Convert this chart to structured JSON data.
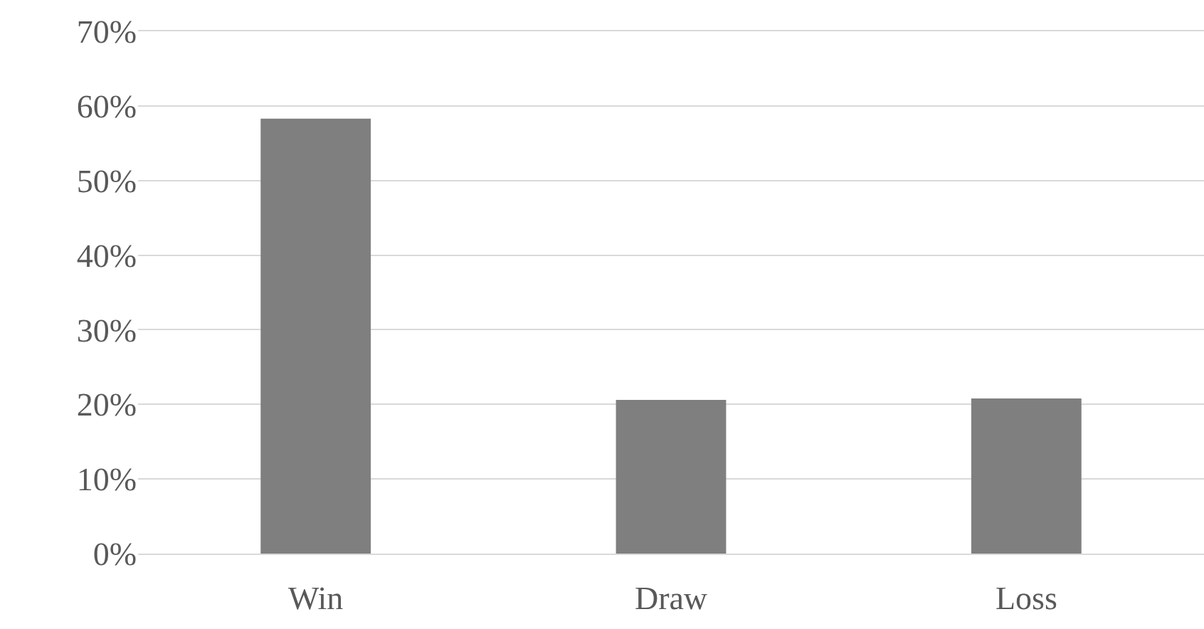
{
  "chart_data": {
    "type": "bar",
    "categories": [
      "Win",
      "Draw",
      "Loss"
    ],
    "values": [
      58.3,
      20.6,
      20.8
    ],
    "color": "#7f7f7f",
    "ylim": [
      0,
      70
    ],
    "yticks": [
      {
        "value": 0,
        "label": "0%"
      },
      {
        "value": 10,
        "label": "10%"
      },
      {
        "value": 20,
        "label": "20%"
      },
      {
        "value": 30,
        "label": "30%"
      },
      {
        "value": 40,
        "label": "40%"
      },
      {
        "value": 50,
        "label": "50%"
      },
      {
        "value": 60,
        "label": "60%"
      },
      {
        "value": 70,
        "label": "70%"
      }
    ],
    "grid": "y"
  }
}
